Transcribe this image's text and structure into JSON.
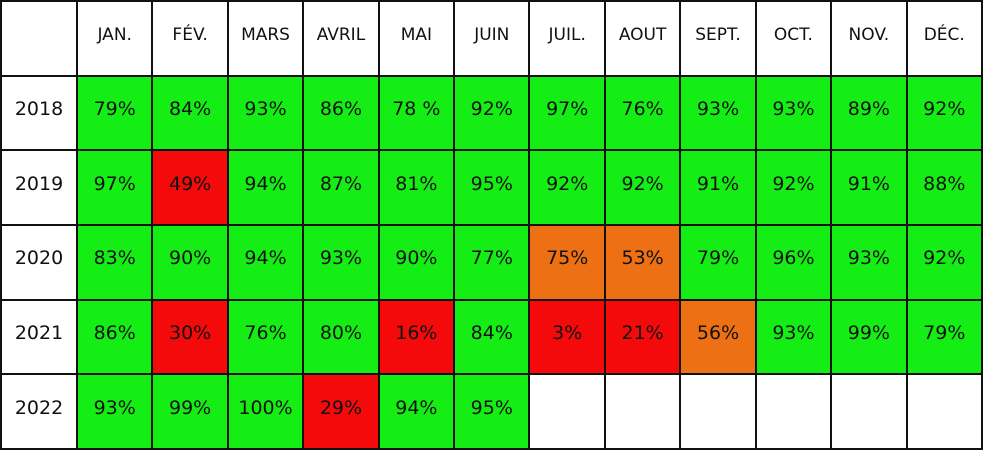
{
  "table": {
    "header": [
      "JAN.",
      "FÉV.",
      "MARS",
      "AVRIL",
      "MAI",
      "JUIN",
      "JUIL.",
      "AOUT",
      "SEPT.",
      "OCT.",
      "NOV.",
      "DÉC."
    ],
    "rows": [
      {
        "year": "2018",
        "cells": [
          {
            "text": "79%",
            "color": "#14ee14"
          },
          {
            "text": "84%",
            "color": "#14ee14"
          },
          {
            "text": "93%",
            "color": "#14ee14"
          },
          {
            "text": "86%",
            "color": "#14ee14"
          },
          {
            "text": "78 %",
            "color": "#14ee14"
          },
          {
            "text": "92%",
            "color": "#14ee14"
          },
          {
            "text": "97%",
            "color": "#14ee14"
          },
          {
            "text": "76%",
            "color": "#14ee14"
          },
          {
            "text": "93%",
            "color": "#14ee14"
          },
          {
            "text": "93%",
            "color": "#14ee14"
          },
          {
            "text": "89%",
            "color": "#14ee14"
          },
          {
            "text": "92%",
            "color": "#14ee14"
          }
        ]
      },
      {
        "year": "2019",
        "cells": [
          {
            "text": "97%",
            "color": "#14ee14"
          },
          {
            "text": "49%",
            "color": "#f40a0a"
          },
          {
            "text": "94%",
            "color": "#14ee14"
          },
          {
            "text": "87%",
            "color": "#14ee14"
          },
          {
            "text": "81%",
            "color": "#14ee14"
          },
          {
            "text": "95%",
            "color": "#14ee14"
          },
          {
            "text": "92%",
            "color": "#14ee14"
          },
          {
            "text": "92%",
            "color": "#14ee14"
          },
          {
            "text": "91%",
            "color": "#14ee14"
          },
          {
            "text": "92%",
            "color": "#14ee14"
          },
          {
            "text": "91%",
            "color": "#14ee14"
          },
          {
            "text": "88%",
            "color": "#14ee14"
          }
        ]
      },
      {
        "year": "2020",
        "cells": [
          {
            "text": "83%",
            "color": "#14ee14"
          },
          {
            "text": "90%",
            "color": "#14ee14"
          },
          {
            "text": "94%",
            "color": "#14ee14"
          },
          {
            "text": "93%",
            "color": "#14ee14"
          },
          {
            "text": "90%",
            "color": "#14ee14"
          },
          {
            "text": "77%",
            "color": "#14ee14"
          },
          {
            "text": "75%",
            "color": "#ee7014"
          },
          {
            "text": "53%",
            "color": "#ee7014"
          },
          {
            "text": "79%",
            "color": "#14ee14"
          },
          {
            "text": "96%",
            "color": "#14ee14"
          },
          {
            "text": "93%",
            "color": "#14ee14"
          },
          {
            "text": "92%",
            "color": "#14ee14"
          }
        ]
      },
      {
        "year": "2021",
        "cells": [
          {
            "text": "86%",
            "color": "#14ee14"
          },
          {
            "text": "30%",
            "color": "#f40a0a"
          },
          {
            "text": "76%",
            "color": "#14ee14"
          },
          {
            "text": "80%",
            "color": "#14ee14"
          },
          {
            "text": "16%",
            "color": "#f40a0a"
          },
          {
            "text": "84%",
            "color": "#14ee14"
          },
          {
            "text": "3%",
            "color": "#f40a0a"
          },
          {
            "text": "21%",
            "color": "#f40a0a"
          },
          {
            "text": "56%",
            "color": "#ee7014"
          },
          {
            "text": "93%",
            "color": "#14ee14"
          },
          {
            "text": "99%",
            "color": "#14ee14"
          },
          {
            "text": "79%",
            "color": "#14ee14"
          }
        ]
      },
      {
        "year": "2022",
        "cells": [
          {
            "text": "93%",
            "color": "#14ee14"
          },
          {
            "text": "99%",
            "color": "#14ee14"
          },
          {
            "text": "100%",
            "color": "#14ee14"
          },
          {
            "text": "29%",
            "color": "#f40a0a"
          },
          {
            "text": "94%",
            "color": "#14ee14"
          },
          {
            "text": "95%",
            "color": "#14ee14"
          }
        ]
      }
    ]
  }
}
